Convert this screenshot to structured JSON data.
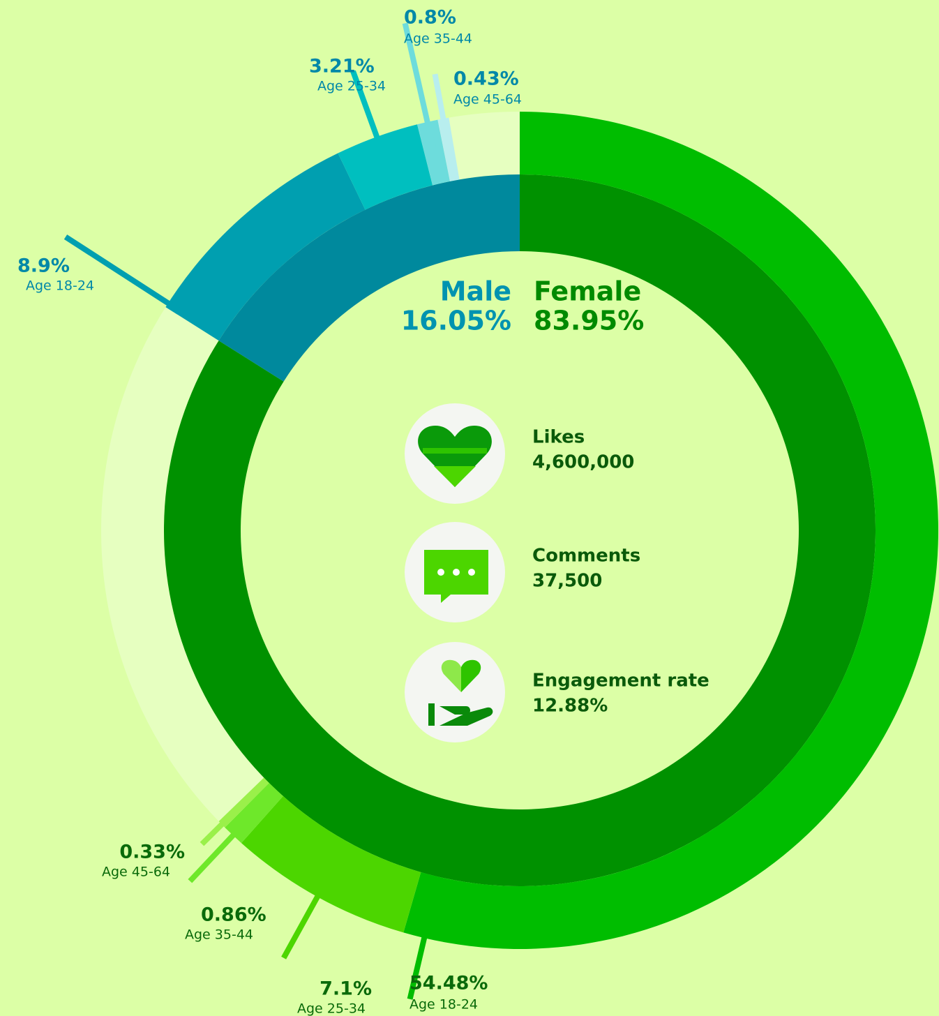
{
  "chart_data": {
    "type": "nested-donut",
    "inner": {
      "categories": [
        "Female",
        "Male"
      ],
      "values": [
        83.95,
        16.05
      ],
      "value_labels": [
        "83.95%",
        "16.05%"
      ],
      "colors": [
        "#009100",
        "#00899d"
      ]
    },
    "outer": [
      {
        "categories": [
          "Age 18-24",
          "Age 25-34",
          "Age 35-44",
          "Age 45-64"
        ],
        "values": [
          54.48,
          7.1,
          0.86,
          0.33
        ],
        "value_labels": [
          "54.48%",
          "7.1%",
          "0.86%",
          "0.33%"
        ],
        "colors": [
          "#00bd00",
          "#4cd600",
          "#6ee82a",
          "#9af04a"
        ]
      },
      {
        "categories": [
          "Age 18-24",
          "Age 25-34",
          "Age 35-44",
          "Age 45-64"
        ],
        "values": [
          8.9,
          3.21,
          0.8,
          0.43
        ],
        "value_labels": [
          "8.9%",
          "3.21%",
          "0.8%",
          "0.43%"
        ],
        "colors": [
          "#009fb0",
          "#00bfbf",
          "#6ddcdc",
          "#b8eeee"
        ]
      }
    ],
    "stats": [
      {
        "label": "Likes",
        "value": "4,600,000"
      },
      {
        "label": "Comments",
        "value": "37,500"
      },
      {
        "label": "Engagement rate",
        "value": "12.88%"
      }
    ]
  }
}
